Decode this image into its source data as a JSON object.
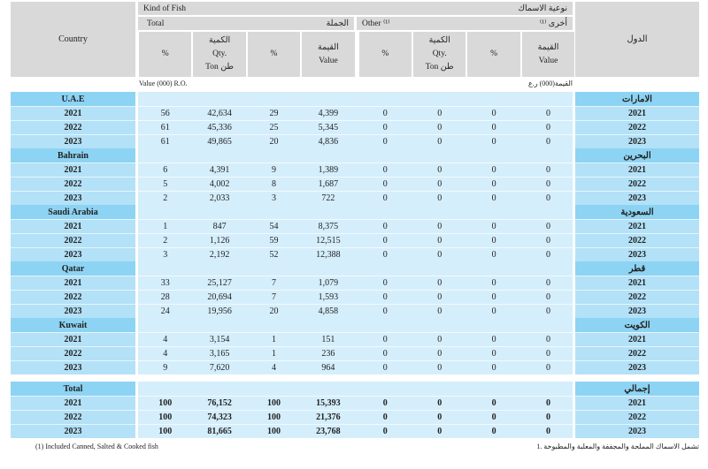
{
  "header": {
    "country_en": "Country",
    "country_ar": "الدول",
    "kind_en": "Kind of  Fish",
    "kind_ar": "نوعية الاسماك",
    "total_en": "Total",
    "total_ar": "الجملة",
    "other_en": "Other ⁽¹⁾",
    "other_ar": "أخرى ⁽¹⁾",
    "pct": "%",
    "qty_ar": "الكمية",
    "qty_en": "Qty.",
    "ton": "Ton   طن",
    "value_ar": "القيمة",
    "value_en": "Value"
  },
  "unit_en": "Value (000) R.O.",
  "unit_ar": "القيمة(000) ر.ع",
  "groups": [
    {
      "en": "U.A.E",
      "ar": "الامارات",
      "rows": [
        {
          "year": "2021",
          "v": [
            "56",
            "42,634",
            "29",
            "4,399",
            "0",
            "0",
            "0",
            "0"
          ]
        },
        {
          "year": "2022",
          "v": [
            "61",
            "45,336",
            "25",
            "5,345",
            "0",
            "0",
            "0",
            "0"
          ]
        },
        {
          "year": "2023",
          "v": [
            "61",
            "49,865",
            "20",
            "4,836",
            "0",
            "0",
            "0",
            "0"
          ]
        }
      ]
    },
    {
      "en": "Bahrain",
      "ar": "البحرين",
      "rows": [
        {
          "year": "2021",
          "v": [
            "6",
            "4,391",
            "9",
            "1,389",
            "0",
            "0",
            "0",
            "0"
          ]
        },
        {
          "year": "2022",
          "v": [
            "5",
            "4,002",
            "8",
            "1,687",
            "0",
            "0",
            "0",
            "0"
          ]
        },
        {
          "year": "2023",
          "v": [
            "2",
            "2,033",
            "3",
            "722",
            "0",
            "0",
            "0",
            "0"
          ]
        }
      ]
    },
    {
      "en": "Saudi Arabia",
      "ar": "السعودية",
      "rows": [
        {
          "year": "2021",
          "v": [
            "1",
            "847",
            "54",
            "8,375",
            "0",
            "0",
            "0",
            "0"
          ]
        },
        {
          "year": "2022",
          "v": [
            "2",
            "1,126",
            "59",
            "12,515",
            "0",
            "0",
            "0",
            "0"
          ]
        },
        {
          "year": "2023",
          "v": [
            "3",
            "2,192",
            "52",
            "12,388",
            "0",
            "0",
            "0",
            "0"
          ]
        }
      ]
    },
    {
      "en": "Qatar",
      "ar": "قطر",
      "rows": [
        {
          "year": "2021",
          "v": [
            "33",
            "25,127",
            "7",
            "1,079",
            "0",
            "0",
            "0",
            "0"
          ]
        },
        {
          "year": "2022",
          "v": [
            "28",
            "20,694",
            "7",
            "1,593",
            "0",
            "0",
            "0",
            "0"
          ]
        },
        {
          "year": "2023",
          "v": [
            "24",
            "19,956",
            "20",
            "4,858",
            "0",
            "0",
            "0",
            "0"
          ]
        }
      ]
    },
    {
      "en": "Kuwait",
      "ar": "الكويت",
      "rows": [
        {
          "year": "2021",
          "v": [
            "4",
            "3,154",
            "1",
            "151",
            "0",
            "0",
            "0",
            "0"
          ]
        },
        {
          "year": "2022",
          "v": [
            "4",
            "3,165",
            "1",
            "236",
            "0",
            "0",
            "0",
            "0"
          ]
        },
        {
          "year": "2023",
          "v": [
            "9",
            "7,620",
            "4",
            "964",
            "0",
            "0",
            "0",
            "0"
          ]
        }
      ]
    },
    {
      "en": "Total",
      "ar": "إجمالي",
      "total": true,
      "rows": [
        {
          "year": "2021",
          "v": [
            "100",
            "76,152",
            "100",
            "15,393",
            "0",
            "0",
            "0",
            "0"
          ]
        },
        {
          "year": "2022",
          "v": [
            "100",
            "74,323",
            "100",
            "21,376",
            "0",
            "0",
            "0",
            "0"
          ]
        },
        {
          "year": "2023",
          "v": [
            "100",
            "81,665",
            "100",
            "23,768",
            "0",
            "0",
            "0",
            "0"
          ]
        }
      ]
    }
  ],
  "footnote_en": "(1) Included Canned,  Salted & Cooked fish",
  "footnote_ar": "1. تشمل الاسماك المملحة والمجففة والمعلبة والمطبوخة"
}
